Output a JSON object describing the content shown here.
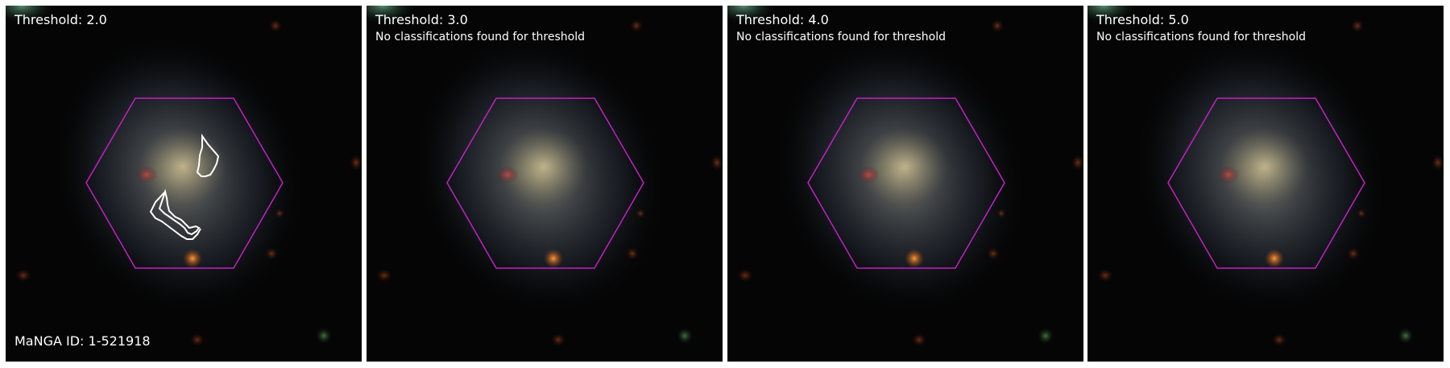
{
  "colors": {
    "background": "#050505",
    "hexagon": "#c41fc4",
    "contour": "#ffffff",
    "separator": "#ffffff"
  },
  "manga_id_label": "MaNGA ID: 1-521918",
  "panels": [
    {
      "title": "Threshold: 2.0",
      "message": ""
    },
    {
      "title": "Threshold: 3.0",
      "message": "No classifications found for threshold"
    },
    {
      "title": "Threshold: 4.0",
      "message": "No classifications found for threshold"
    },
    {
      "title": "Threshold: 5.0",
      "message": "No classifications found for threshold"
    }
  ]
}
